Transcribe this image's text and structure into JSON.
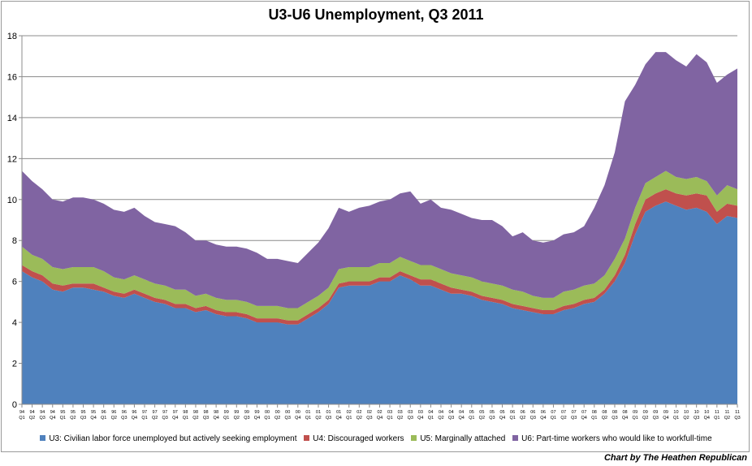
{
  "chart_data": {
    "type": "area",
    "stacked": true,
    "title": "U3-U6 Unemployment, Q3 2011",
    "xlabel": "",
    "ylabel": "",
    "ylim": [
      0,
      18
    ],
    "yticks": [
      0,
      2,
      4,
      6,
      8,
      10,
      12,
      14,
      16,
      18
    ],
    "grid": true,
    "legend_position": "bottom",
    "credit": "Chart by The Heathen Republican",
    "x": [
      {
        "yr": "94",
        "q": "Q1"
      },
      {
        "yr": "94",
        "q": "Q2"
      },
      {
        "yr": "94",
        "q": "Q3"
      },
      {
        "yr": "94",
        "q": "Q4"
      },
      {
        "yr": "95",
        "q": "Q1"
      },
      {
        "yr": "95",
        "q": "Q2"
      },
      {
        "yr": "95",
        "q": "Q3"
      },
      {
        "yr": "95",
        "q": "Q4"
      },
      {
        "yr": "96",
        "q": "Q1"
      },
      {
        "yr": "96",
        "q": "Q2"
      },
      {
        "yr": "96",
        "q": "Q3"
      },
      {
        "yr": "96",
        "q": "Q4"
      },
      {
        "yr": "97",
        "q": "Q1"
      },
      {
        "yr": "97",
        "q": "Q2"
      },
      {
        "yr": "97",
        "q": "Q3"
      },
      {
        "yr": "97",
        "q": "Q4"
      },
      {
        "yr": "98",
        "q": "Q1"
      },
      {
        "yr": "98",
        "q": "Q2"
      },
      {
        "yr": "98",
        "q": "Q3"
      },
      {
        "yr": "98",
        "q": "Q4"
      },
      {
        "yr": "99",
        "q": "Q1"
      },
      {
        "yr": "99",
        "q": "Q2"
      },
      {
        "yr": "99",
        "q": "Q3"
      },
      {
        "yr": "99",
        "q": "Q4"
      },
      {
        "yr": "00",
        "q": "Q1"
      },
      {
        "yr": "00",
        "q": "Q2"
      },
      {
        "yr": "00",
        "q": "Q3"
      },
      {
        "yr": "00",
        "q": "Q4"
      },
      {
        "yr": "01",
        "q": "Q1"
      },
      {
        "yr": "01",
        "q": "Q2"
      },
      {
        "yr": "01",
        "q": "Q3"
      },
      {
        "yr": "01",
        "q": "Q4"
      },
      {
        "yr": "02",
        "q": "Q1"
      },
      {
        "yr": "02",
        "q": "Q2"
      },
      {
        "yr": "02",
        "q": "Q3"
      },
      {
        "yr": "02",
        "q": "Q4"
      },
      {
        "yr": "03",
        "q": "Q1"
      },
      {
        "yr": "03",
        "q": "Q2"
      },
      {
        "yr": "03",
        "q": "Q3"
      },
      {
        "yr": "03",
        "q": "Q4"
      },
      {
        "yr": "04",
        "q": "Q1"
      },
      {
        "yr": "04",
        "q": "Q2"
      },
      {
        "yr": "04",
        "q": "Q3"
      },
      {
        "yr": "04",
        "q": "Q4"
      },
      {
        "yr": "05",
        "q": "Q1"
      },
      {
        "yr": "05",
        "q": "Q2"
      },
      {
        "yr": "05",
        "q": "Q3"
      },
      {
        "yr": "05",
        "q": "Q4"
      },
      {
        "yr": "06",
        "q": "Q1"
      },
      {
        "yr": "06",
        "q": "Q2"
      },
      {
        "yr": "06",
        "q": "Q3"
      },
      {
        "yr": "06",
        "q": "Q4"
      },
      {
        "yr": "07",
        "q": "Q1"
      },
      {
        "yr": "07",
        "q": "Q2"
      },
      {
        "yr": "07",
        "q": "Q3"
      },
      {
        "yr": "07",
        "q": "Q4"
      },
      {
        "yr": "08",
        "q": "Q1"
      },
      {
        "yr": "08",
        "q": "Q2"
      },
      {
        "yr": "08",
        "q": "Q3"
      },
      {
        "yr": "08",
        "q": "Q4"
      },
      {
        "yr": "09",
        "q": "Q1"
      },
      {
        "yr": "09",
        "q": "Q2"
      },
      {
        "yr": "09",
        "q": "Q3"
      },
      {
        "yr": "09",
        "q": "Q4"
      },
      {
        "yr": "10",
        "q": "Q1"
      },
      {
        "yr": "10",
        "q": "Q2"
      },
      {
        "yr": "10",
        "q": "Q3"
      },
      {
        "yr": "10",
        "q": "Q4"
      },
      {
        "yr": "11",
        "q": "Q1"
      },
      {
        "yr": "11",
        "q": "Q2"
      },
      {
        "yr": "11",
        "q": "Q3"
      }
    ],
    "series": [
      {
        "name": "U3: Civilian labor force unemployed but actively seeking employment",
        "color": "#4f81bd",
        "values": [
          6.5,
          6.2,
          6.0,
          5.6,
          5.5,
          5.7,
          5.7,
          5.6,
          5.5,
          5.3,
          5.2,
          5.4,
          5.2,
          5.0,
          4.9,
          4.7,
          4.7,
          4.5,
          4.6,
          4.4,
          4.3,
          4.3,
          4.2,
          4.0,
          4.0,
          4.0,
          3.9,
          3.9,
          4.2,
          4.5,
          4.9,
          5.7,
          5.8,
          5.8,
          5.8,
          6.0,
          6.0,
          6.3,
          6.1,
          5.8,
          5.8,
          5.6,
          5.4,
          5.4,
          5.3,
          5.1,
          5.0,
          4.9,
          4.7,
          4.6,
          4.5,
          4.4,
          4.4,
          4.6,
          4.7,
          4.9,
          5.0,
          5.4,
          6.0,
          6.9,
          8.3,
          9.4,
          9.7,
          9.9,
          9.7,
          9.5,
          9.6,
          9.4,
          8.8,
          9.2,
          9.1
        ]
      },
      {
        "name": "U4: Discouraged workers",
        "color": "#c0504d",
        "values": [
          0.3,
          0.3,
          0.3,
          0.3,
          0.3,
          0.2,
          0.2,
          0.3,
          0.2,
          0.2,
          0.2,
          0.2,
          0.2,
          0.2,
          0.2,
          0.2,
          0.2,
          0.2,
          0.2,
          0.2,
          0.2,
          0.2,
          0.2,
          0.2,
          0.2,
          0.2,
          0.2,
          0.2,
          0.2,
          0.2,
          0.2,
          0.2,
          0.2,
          0.2,
          0.2,
          0.2,
          0.2,
          0.2,
          0.2,
          0.3,
          0.3,
          0.3,
          0.3,
          0.2,
          0.2,
          0.2,
          0.2,
          0.2,
          0.2,
          0.2,
          0.2,
          0.2,
          0.2,
          0.2,
          0.2,
          0.2,
          0.2,
          0.2,
          0.3,
          0.4,
          0.5,
          0.6,
          0.6,
          0.6,
          0.6,
          0.7,
          0.7,
          0.8,
          0.6,
          0.6,
          0.6
        ]
      },
      {
        "name": "U5: Marginally attached",
        "color": "#9bbb59",
        "values": [
          0.9,
          0.8,
          0.8,
          0.8,
          0.8,
          0.8,
          0.8,
          0.8,
          0.8,
          0.7,
          0.7,
          0.7,
          0.7,
          0.7,
          0.7,
          0.7,
          0.7,
          0.6,
          0.6,
          0.6,
          0.6,
          0.6,
          0.6,
          0.6,
          0.6,
          0.6,
          0.6,
          0.6,
          0.6,
          0.6,
          0.6,
          0.7,
          0.7,
          0.7,
          0.7,
          0.7,
          0.7,
          0.7,
          0.7,
          0.7,
          0.7,
          0.7,
          0.7,
          0.7,
          0.7,
          0.7,
          0.7,
          0.7,
          0.7,
          0.7,
          0.6,
          0.6,
          0.6,
          0.7,
          0.7,
          0.7,
          0.7,
          0.7,
          0.8,
          0.8,
          0.8,
          0.8,
          0.8,
          0.9,
          0.8,
          0.8,
          0.8,
          0.7,
          0.8,
          0.9,
          0.8
        ]
      },
      {
        "name": "U6: Part-time workers who would like to workfull-time",
        "color": "#8064a2",
        "values": [
          3.7,
          3.6,
          3.4,
          3.3,
          3.3,
          3.4,
          3.4,
          3.3,
          3.3,
          3.3,
          3.3,
          3.3,
          3.1,
          3.0,
          3.0,
          3.1,
          2.8,
          2.7,
          2.6,
          2.6,
          2.6,
          2.6,
          2.6,
          2.6,
          2.3,
          2.3,
          2.3,
          2.2,
          2.4,
          2.6,
          2.9,
          3.0,
          2.7,
          2.9,
          3.0,
          3.0,
          3.1,
          3.1,
          3.4,
          3.0,
          3.2,
          3.0,
          3.1,
          3.0,
          2.9,
          3.0,
          3.1,
          2.9,
          2.6,
          2.9,
          2.7,
          2.7,
          2.8,
          2.8,
          2.8,
          2.9,
          3.7,
          4.4,
          5.2,
          6.7,
          6.0,
          5.8,
          6.1,
          5.8,
          5.7,
          5.5,
          6.0,
          5.8,
          5.5,
          5.4,
          5.9
        ]
      }
    ]
  }
}
